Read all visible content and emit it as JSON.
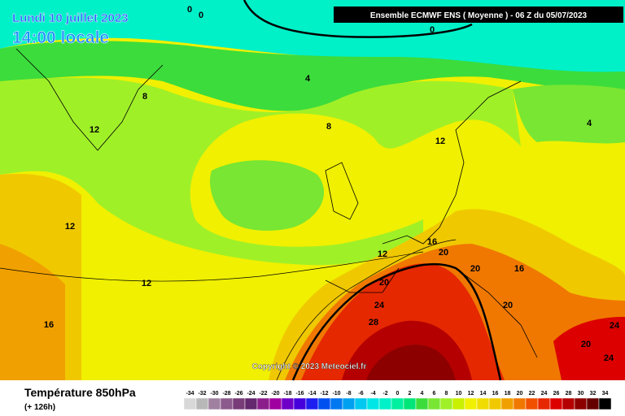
{
  "header": {
    "date": "Lundi 10 juillet 2023",
    "time": "14:00 locale",
    "run": "Ensemble ECMWF ENS  ( Moyenne )  -  06 Z du 05/07/2023"
  },
  "contour_labels": [
    "0",
    "0",
    "0",
    "4",
    "8",
    "12",
    "8",
    "12",
    "4",
    "12",
    "16",
    "20",
    "12",
    "20",
    "16",
    "12",
    "20",
    "24",
    "20",
    "16",
    "28",
    "24",
    "20",
    "24"
  ],
  "copyright": "Copyright © 2023 Meteociel.fr",
  "footer": {
    "title": "Température 850hPa",
    "lead": "(+ 126h)"
  },
  "scale": {
    "labels": [
      "-34",
      "-32",
      "-30",
      "-28",
      "-26",
      "-24",
      "-22",
      "-20",
      "-18",
      "-16",
      "-14",
      "-12",
      "-10",
      "-8",
      "-6",
      "-4",
      "-2",
      "0",
      "2",
      "4",
      "6",
      "8",
      "10",
      "12",
      "14",
      "16",
      "18",
      "20",
      "22",
      "24",
      "26",
      "28",
      "30",
      "32",
      "34"
    ],
    "colors": [
      "#d8d8d8",
      "#b8b8b8",
      "#a080a0",
      "#8c5a8c",
      "#783c78",
      "#64286e",
      "#8c1e8c",
      "#a000a0",
      "#6e00c8",
      "#4600dc",
      "#1e1ef0",
      "#0050f0",
      "#0078f0",
      "#00a0f0",
      "#00c8f0",
      "#00e6e6",
      "#00f0c8",
      "#00f0a0",
      "#00e678",
      "#3cdc3c",
      "#78e632",
      "#a0f028",
      "#c8f000",
      "#f0f000",
      "#f0dc00",
      "#f0c800",
      "#f0a000",
      "#f07800",
      "#f05000",
      "#e62800",
      "#dc0000",
      "#b40000",
      "#8c0000",
      "#640000",
      "#000000"
    ]
  }
}
